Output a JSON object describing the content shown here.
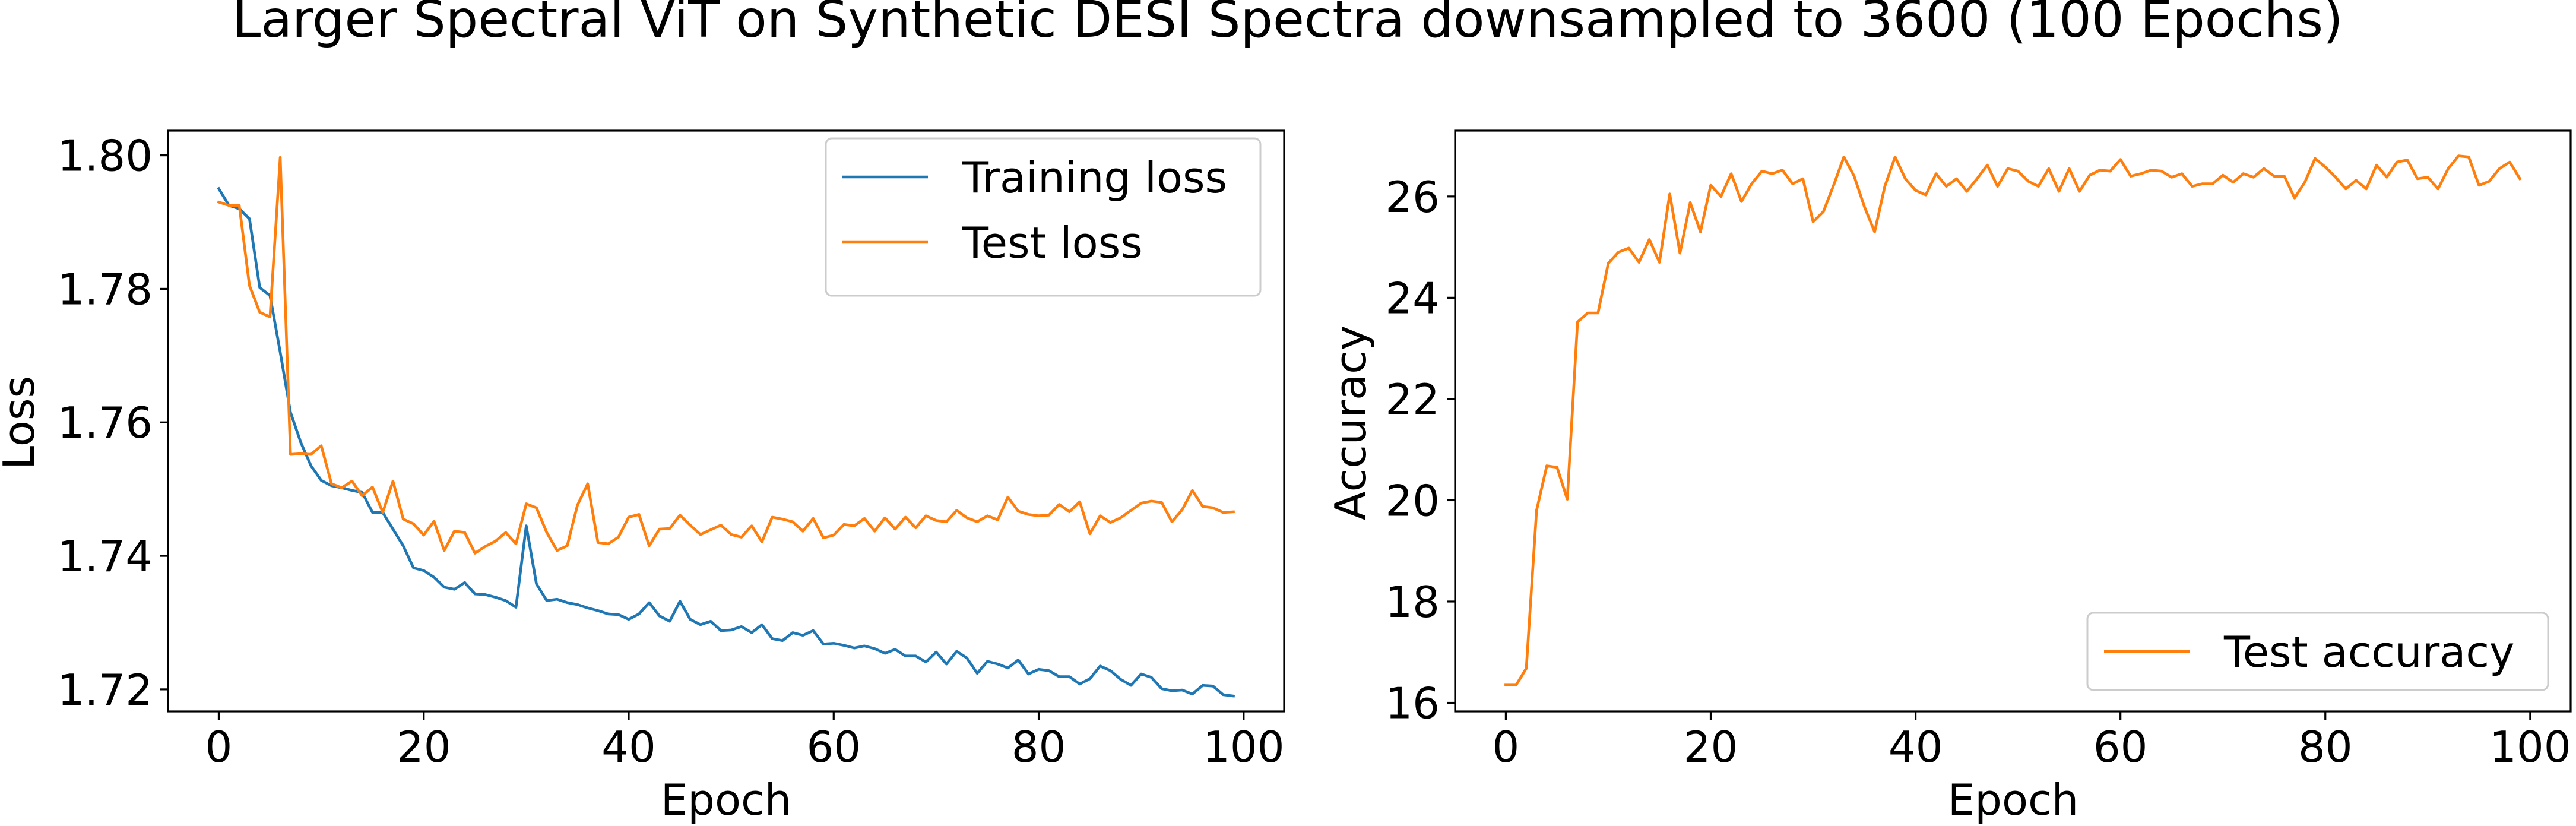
{
  "figure": {
    "title": "Larger Spectral ViT on Synthetic DESI Spectra downsampled to 3600 (100 Epochs)"
  },
  "colors": {
    "blue": "#1f77b4",
    "orange": "#ff7f0e"
  },
  "chart_data": [
    {
      "type": "line",
      "xlabel": "Epoch",
      "ylabel": "Loss",
      "xlim": [
        -4.95,
        103.95
      ],
      "ylim": [
        1.7167,
        1.8037
      ],
      "xticks": [
        0,
        20,
        40,
        60,
        80,
        100
      ],
      "xtick_labels": [
        "0",
        "20",
        "40",
        "60",
        "80",
        "100"
      ],
      "yticks": [
        1.72,
        1.74,
        1.76,
        1.78,
        1.8
      ],
      "ytick_labels": [
        "1.72",
        "1.74",
        "1.76",
        "1.78",
        "1.80"
      ],
      "legend": "upper right",
      "grid": false,
      "series": [
        {
          "name": "Training loss",
          "color": "#1f77b4",
          "x": [
            0,
            1,
            2,
            3,
            4,
            5,
            6,
            7,
            8,
            9,
            10,
            11,
            12,
            13,
            14,
            15,
            16,
            17,
            18,
            19,
            20,
            21,
            22,
            23,
            24,
            25,
            26,
            27,
            28,
            29,
            30,
            31,
            32,
            33,
            34,
            35,
            36,
            37,
            38,
            39,
            40,
            41,
            42,
            43,
            44,
            45,
            46,
            47,
            48,
            49,
            50,
            51,
            52,
            53,
            54,
            55,
            56,
            57,
            58,
            59,
            60,
            61,
            62,
            63,
            64,
            65,
            66,
            67,
            68,
            69,
            70,
            71,
            72,
            73,
            74,
            75,
            76,
            77,
            78,
            79,
            80,
            81,
            82,
            83,
            84,
            85,
            86,
            87,
            88,
            89,
            90,
            91,
            92,
            93,
            94,
            95,
            96,
            97,
            98,
            99
          ],
          "y": [
            1.795,
            1.7925,
            1.792,
            1.7905,
            1.7802,
            1.779,
            1.7705,
            1.7615,
            1.757,
            1.7535,
            1.7513,
            1.7505,
            1.7502,
            1.7498,
            1.7495,
            1.7465,
            1.7465,
            1.744,
            1.7415,
            1.7382,
            1.7378,
            1.7368,
            1.7353,
            1.735,
            1.736,
            1.7343,
            1.7342,
            1.7338,
            1.7333,
            1.7323,
            1.7445,
            1.7358,
            1.7333,
            1.7335,
            1.733,
            1.7327,
            1.7322,
            1.7318,
            1.7313,
            1.7312,
            1.7305,
            1.7313,
            1.733,
            1.731,
            1.7302,
            1.7332,
            1.7305,
            1.7297,
            1.7302,
            1.7288,
            1.7289,
            1.7294,
            1.7285,
            1.7297,
            1.7276,
            1.7273,
            1.7285,
            1.7281,
            1.7288,
            1.7268,
            1.7269,
            1.7266,
            1.7262,
            1.7265,
            1.7261,
            1.7254,
            1.726,
            1.725,
            1.725,
            1.7241,
            1.7256,
            1.7238,
            1.7257,
            1.7247,
            1.7224,
            1.7242,
            1.7238,
            1.7232,
            1.7244,
            1.7223,
            1.723,
            1.7228,
            1.7219,
            1.7219,
            1.7208,
            1.7216,
            1.7235,
            1.7228,
            1.7215,
            1.7206,
            1.7223,
            1.7218,
            1.7201,
            1.7198,
            1.7199,
            1.7193,
            1.7206,
            1.7205,
            1.7192,
            1.719
          ]
        },
        {
          "name": "Test loss",
          "color": "#ff7f0e",
          "x": [
            0,
            1,
            2,
            3,
            4,
            5,
            6,
            7,
            8,
            9,
            10,
            11,
            12,
            13,
            14,
            15,
            16,
            17,
            18,
            19,
            20,
            21,
            22,
            23,
            24,
            25,
            26,
            27,
            28,
            29,
            30,
            31,
            32,
            33,
            34,
            35,
            36,
            37,
            38,
            39,
            40,
            41,
            42,
            43,
            44,
            45,
            46,
            47,
            48,
            49,
            50,
            51,
            52,
            53,
            54,
            55,
            56,
            57,
            58,
            59,
            60,
            61,
            62,
            63,
            64,
            65,
            66,
            67,
            68,
            69,
            70,
            71,
            72,
            73,
            74,
            75,
            76,
            77,
            78,
            79,
            80,
            81,
            82,
            83,
            84,
            85,
            86,
            87,
            88,
            89,
            90,
            91,
            92,
            93,
            94,
            95,
            96,
            97,
            98,
            99
          ],
          "y": [
            1.793,
            1.7925,
            1.7925,
            1.7805,
            1.7765,
            1.7758,
            1.7997,
            1.7552,
            1.7553,
            1.7552,
            1.7565,
            1.7508,
            1.7502,
            1.7512,
            1.749,
            1.7503,
            1.7465,
            1.7512,
            1.7455,
            1.7448,
            1.7431,
            1.7452,
            1.7408,
            1.7437,
            1.7435,
            1.7404,
            1.7414,
            1.7422,
            1.7435,
            1.7418,
            1.7478,
            1.7472,
            1.7435,
            1.7408,
            1.7415,
            1.7476,
            1.7508,
            1.742,
            1.7418,
            1.7428,
            1.7458,
            1.7462,
            1.7415,
            1.744,
            1.7441,
            1.7461,
            1.7446,
            1.7432,
            1.7439,
            1.7446,
            1.7432,
            1.7428,
            1.7445,
            1.7421,
            1.7458,
            1.7455,
            1.7451,
            1.7437,
            1.7456,
            1.7427,
            1.7431,
            1.7447,
            1.7445,
            1.7456,
            1.7437,
            1.7457,
            1.744,
            1.7458,
            1.7442,
            1.746,
            1.7453,
            1.7451,
            1.7468,
            1.7457,
            1.7451,
            1.746,
            1.7454,
            1.7488,
            1.7467,
            1.7462,
            1.746,
            1.7461,
            1.7477,
            1.7466,
            1.7481,
            1.7433,
            1.746,
            1.745,
            1.7457,
            1.7468,
            1.7479,
            1.7482,
            1.748,
            1.7451,
            1.7469,
            1.7498,
            1.7474,
            1.7472,
            1.7465,
            1.7466
          ]
        }
      ]
    },
    {
      "type": "line",
      "xlabel": "Epoch",
      "ylabel": "Accuracy",
      "xlim": [
        -4.95,
        103.95
      ],
      "ylim": [
        15.83,
        27.3
      ],
      "xticks": [
        0,
        20,
        40,
        60,
        80,
        100
      ],
      "xtick_labels": [
        "0",
        "20",
        "40",
        "60",
        "80",
        "100"
      ],
      "yticks": [
        16,
        18,
        20,
        22,
        24,
        26
      ],
      "ytick_labels": [
        "16",
        "18",
        "20",
        "22",
        "24",
        "26"
      ],
      "legend": "lower right",
      "grid": false,
      "series": [
        {
          "name": "Test accuracy",
          "color": "#ff7f0e",
          "x": [
            0,
            1,
            2,
            3,
            4,
            5,
            6,
            7,
            8,
            9,
            10,
            11,
            12,
            13,
            14,
            15,
            16,
            17,
            18,
            19,
            20,
            21,
            22,
            23,
            24,
            25,
            26,
            27,
            28,
            29,
            30,
            31,
            32,
            33,
            34,
            35,
            36,
            37,
            38,
            39,
            40,
            41,
            42,
            43,
            44,
            45,
            46,
            47,
            48,
            49,
            50,
            51,
            52,
            53,
            54,
            55,
            56,
            57,
            58,
            59,
            60,
            61,
            62,
            63,
            64,
            65,
            66,
            67,
            68,
            69,
            70,
            71,
            72,
            73,
            74,
            75,
            76,
            77,
            78,
            79,
            80,
            81,
            82,
            83,
            84,
            85,
            86,
            87,
            88,
            89,
            90,
            91,
            92,
            93,
            94,
            95,
            96,
            97,
            98,
            99
          ],
          "y": [
            16.35,
            16.35,
            16.68,
            19.8,
            20.68,
            20.65,
            20.02,
            23.52,
            23.7,
            23.7,
            24.68,
            24.9,
            24.98,
            24.7,
            25.15,
            24.7,
            26.05,
            24.88,
            25.88,
            25.3,
            26.22,
            26.0,
            26.45,
            25.9,
            26.25,
            26.5,
            26.45,
            26.52,
            26.25,
            26.35,
            25.5,
            25.7,
            26.22,
            26.78,
            26.4,
            25.8,
            25.3,
            26.2,
            26.78,
            26.35,
            26.12,
            26.03,
            26.45,
            26.2,
            26.35,
            26.1,
            26.35,
            26.62,
            26.2,
            26.55,
            26.5,
            26.3,
            26.2,
            26.55,
            26.1,
            26.55,
            26.1,
            26.42,
            26.52,
            26.5,
            26.73,
            26.4,
            26.45,
            26.52,
            26.5,
            26.38,
            26.45,
            26.2,
            26.25,
            26.25,
            26.42,
            26.28,
            26.45,
            26.38,
            26.55,
            26.4,
            26.4,
            25.97,
            26.28,
            26.75,
            26.58,
            26.38,
            26.15,
            26.32,
            26.15,
            26.62,
            26.38,
            26.68,
            26.72,
            26.35,
            26.38,
            26.15,
            26.55,
            26.8,
            26.78,
            26.22,
            26.3,
            26.55,
            26.68,
            26.35
          ]
        }
      ]
    }
  ]
}
